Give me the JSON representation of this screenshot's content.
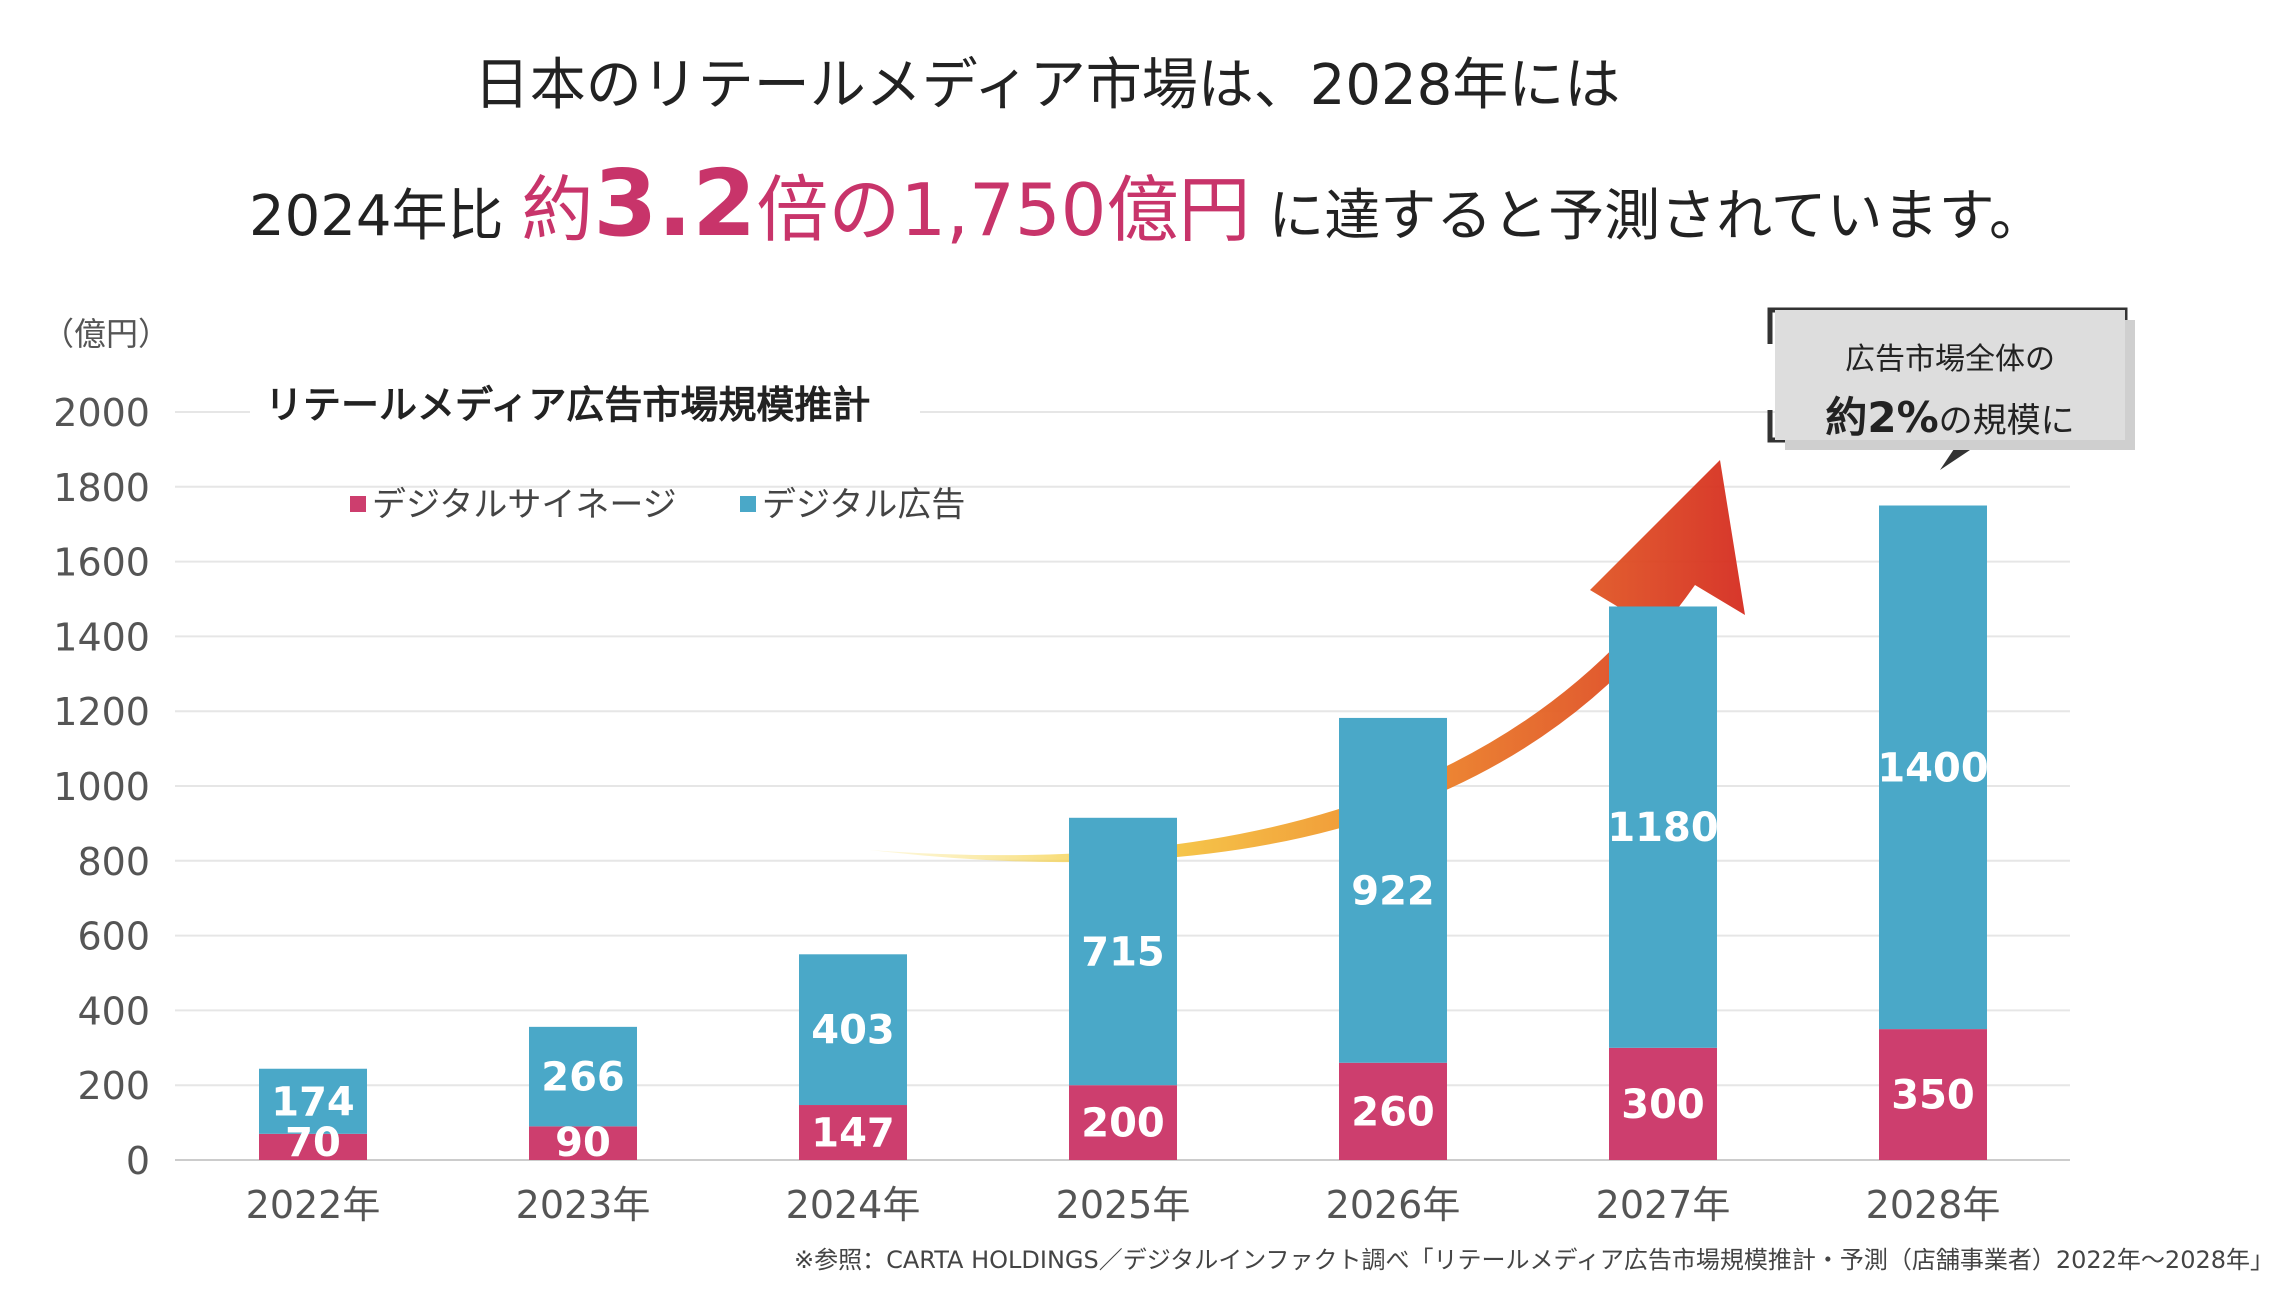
{
  "headline": {
    "line1": "日本のリテールメディア市場は、2028年には",
    "line2_prefix": "2024年比",
    "line2_accent_a": "約",
    "line2_accent_b": "3.2",
    "line2_accent_c": "倍の1,750億円",
    "line2_suffix": "に達すると予測されています。"
  },
  "callout": {
    "line1": "広告市場全体の",
    "line2_a": "約",
    "line2_b": "2%",
    "line2_c": "の規模に"
  },
  "source_note": "※参照：CARTA HOLDINGS／デジタルインファクト調べ「リテールメディア広告市場規模推計・予測（店舗事業者）2022年～2028年」",
  "chart_data": {
    "type": "bar",
    "stacked": true,
    "title": "リテールメディア広告市場規模推計",
    "unit_label": "（億円）",
    "categories": [
      "2022年",
      "2023年",
      "2024年",
      "2025年",
      "2026年",
      "2027年",
      "2028年"
    ],
    "series": [
      {
        "name": "デジタルサイネージ",
        "values": [
          70,
          90,
          147,
          200,
          260,
          300,
          350
        ],
        "color": "#cd3e6e"
      },
      {
        "name": "デジタル広告",
        "values": [
          174,
          266,
          403,
          715,
          922,
          1180,
          1400
        ],
        "color": "#4aa8c8"
      }
    ],
    "ylim": [
      0,
      2000
    ],
    "yticks": [
      0,
      200,
      400,
      600,
      800,
      1000,
      1200,
      1400,
      1600,
      1800,
      2000
    ],
    "grid": true,
    "legend_position": "top-left",
    "annotation": "growth-arrow"
  }
}
